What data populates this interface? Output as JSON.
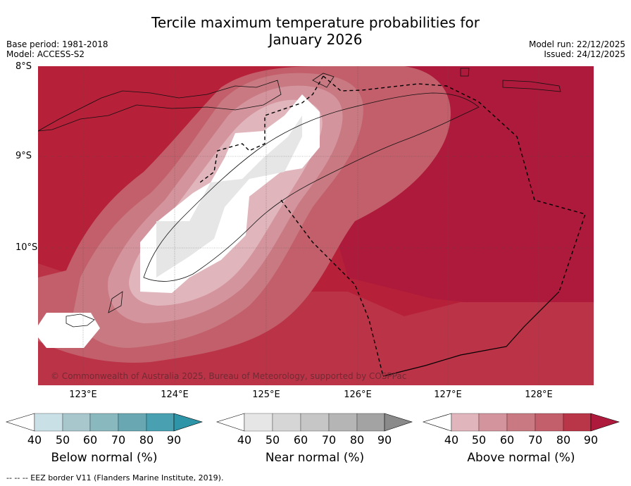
{
  "title_line1": "Tercile maximum temperature probabilities for",
  "title_line2": "January 2026",
  "meta_left": [
    "Base period: 1981-2018",
    "Model: ACCESS-S2"
  ],
  "meta_right": [
    "Model run: 22/12/2025",
    "Issued: 24/12/2025"
  ],
  "lat_labels": [
    "8°S",
    "9°S",
    "10°S"
  ],
  "lon_labels": [
    "123°E",
    "124°E",
    "125°E",
    "126°E",
    "127°E",
    "128°E"
  ],
  "copyright": "© Commonwealth of Australia 2025, Bureau of Meteorology, supported by COSPPac",
  "colorbars": [
    {
      "label": "Below normal (%)",
      "ticks": [
        "40",
        "50",
        "60",
        "70",
        "80",
        "90"
      ],
      "colors": [
        "#c8e0e6",
        "#a7c7cc",
        "#8ab8bf",
        "#69a8b3",
        "#48a0b0",
        "#2e95a8"
      ]
    },
    {
      "label": "Near normal (%)",
      "ticks": [
        "40",
        "50",
        "60",
        "70",
        "80",
        "90"
      ],
      "colors": [
        "#e6e6e6",
        "#d6d6d6",
        "#c6c6c6",
        "#b5b5b5",
        "#a3a3a3",
        "#8a8a8a"
      ]
    },
    {
      "label": "Above normal (%)",
      "ticks": [
        "40",
        "50",
        "60",
        "70",
        "80",
        "90"
      ],
      "colors": [
        "#e0b5bc",
        "#d4949d",
        "#c97981",
        "#c25f6b",
        "#b93548",
        "#ad1a3b"
      ]
    }
  ],
  "footnote": "--  --  -- EEZ border V11 (Flanders Marine Institute, 2019)."
}
